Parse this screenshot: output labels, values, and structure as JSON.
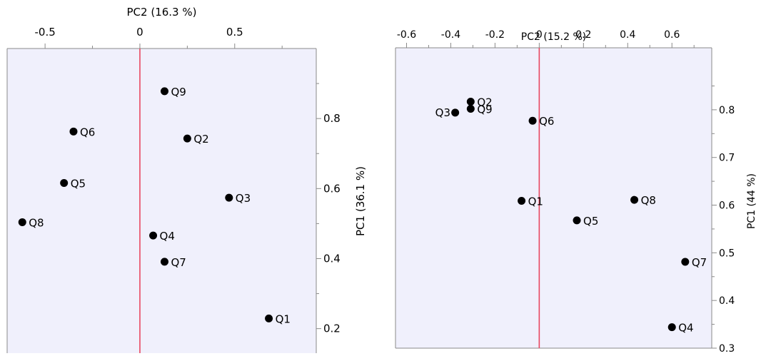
{
  "colors": {
    "plot_background": "#f0f0fc",
    "frame": "#8a8a8a",
    "zero_line": "#e84860",
    "point": "#000000",
    "text": "#000000"
  },
  "chart_data": [
    {
      "type": "scatter",
      "title": "",
      "xlabel": "PC2 (16.3 %)",
      "ylabel": "PC1  (36.1 %)",
      "xlim": [
        -0.7,
        0.93
      ],
      "ylim": [
        0.13,
        1.0
      ],
      "x_axis_position": "top",
      "y_axis_position": "right",
      "grid": false,
      "reference_line": {
        "axis": "x",
        "value": 0
      },
      "xticks": [
        {
          "value": -0.5,
          "label": "-0.5"
        },
        {
          "value": 0,
          "label": "0"
        },
        {
          "value": 0.5,
          "label": "0.5"
        }
      ],
      "xminor": [
        -0.75,
        -0.25,
        0.25,
        0.75
      ],
      "yticks": [
        {
          "value": 0.2,
          "label": "0.2"
        },
        {
          "value": 0.4,
          "label": "0.4"
        },
        {
          "value": 0.6,
          "label": "0.6"
        },
        {
          "value": 0.8,
          "label": "0.8"
        }
      ],
      "yminor": [
        0.3,
        0.5,
        0.7,
        0.9
      ],
      "points": [
        {
          "label": "Q9",
          "x": 0.13,
          "y": 0.878
        },
        {
          "label": "Q6",
          "x": -0.35,
          "y": 0.763
        },
        {
          "label": "Q2",
          "x": 0.25,
          "y": 0.743
        },
        {
          "label": "Q5",
          "x": -0.4,
          "y": 0.616
        },
        {
          "label": "Q3",
          "x": 0.47,
          "y": 0.574
        },
        {
          "label": "Q8",
          "x": -0.62,
          "y": 0.504
        },
        {
          "label": "Q4",
          "x": 0.07,
          "y": 0.466
        },
        {
          "label": "Q7",
          "x": 0.13,
          "y": 0.391
        },
        {
          "label": "Q1",
          "x": 0.68,
          "y": 0.229
        }
      ]
    },
    {
      "type": "scatter",
      "title": "",
      "xlabel": "PC2 (15.2 %)",
      "ylabel": "PC1  (44 %)",
      "xlim": [
        -0.65,
        0.78
      ],
      "ylim": [
        0.3,
        0.93
      ],
      "x_axis_position": "top",
      "y_axis_position": "right",
      "grid": false,
      "reference_line": {
        "axis": "x",
        "value": 0
      },
      "xticks": [
        {
          "value": -0.6,
          "label": "-0.6"
        },
        {
          "value": -0.4,
          "label": "-0.4"
        },
        {
          "value": -0.2,
          "label": "-0.2"
        },
        {
          "value": 0,
          "label": "0"
        },
        {
          "value": 0.2,
          "label": "0.2"
        },
        {
          "value": 0.4,
          "label": "0.4"
        },
        {
          "value": 0.6,
          "label": "0.6"
        }
      ],
      "xminor": [
        -0.5,
        -0.3,
        -0.1,
        0.1,
        0.3,
        0.5,
        0.7
      ],
      "yticks": [
        {
          "value": 0.3,
          "label": "0.3"
        },
        {
          "value": 0.4,
          "label": "0.4"
        },
        {
          "value": 0.5,
          "label": "0.5"
        },
        {
          "value": 0.6,
          "label": "0.6"
        },
        {
          "value": 0.7,
          "label": "0.7"
        },
        {
          "value": 0.8,
          "label": "0.8"
        }
      ],
      "yminor": [
        0.35,
        0.45,
        0.55,
        0.65,
        0.75,
        0.85
      ],
      "points": [
        {
          "label": "Q2",
          "x": -0.31,
          "y": 0.817
        },
        {
          "label": "Q9",
          "x": -0.31,
          "y": 0.802
        },
        {
          "label": "Q3",
          "x": -0.38,
          "y": 0.794
        },
        {
          "label": "Q6",
          "x": -0.03,
          "y": 0.777
        },
        {
          "label": "Q1",
          "x": -0.08,
          "y": 0.609
        },
        {
          "label": "Q8",
          "x": 0.43,
          "y": 0.611
        },
        {
          "label": "Q5",
          "x": 0.17,
          "y": 0.568
        },
        {
          "label": "Q7",
          "x": 0.66,
          "y": 0.481
        },
        {
          "label": "Q4",
          "x": 0.6,
          "y": 0.344
        }
      ]
    }
  ]
}
